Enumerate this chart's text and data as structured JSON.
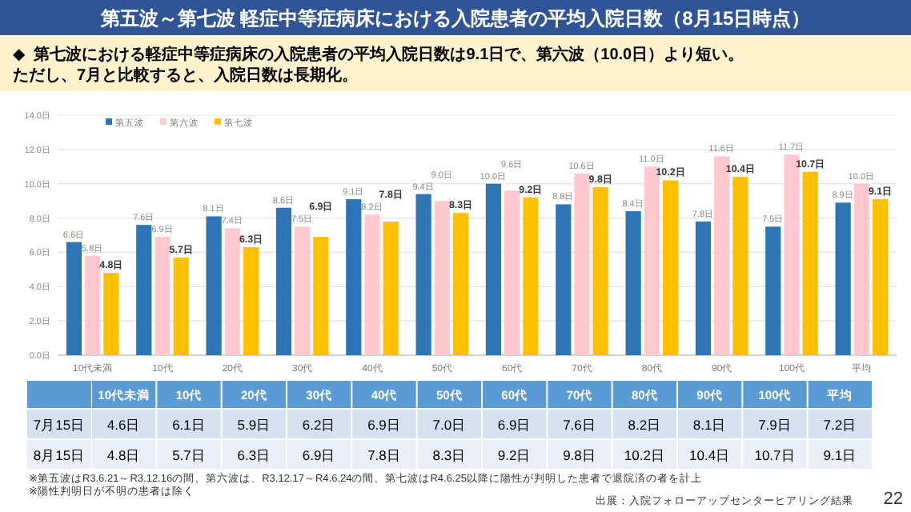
{
  "chart_data": [
    {
      "type": "bar",
      "title": "第五波～第七波  軽症中等症病床における入院患者の平均入院日数（8月15日時点）",
      "subtitle": "◆  第七波における軽症中等症病床の入院患者の平均入院日数は9.1日で、第六波（10.0日）より短い。ただし、7月と比較すると、入院日数は長期化。",
      "categories": [
        "10代未満",
        "10代",
        "20代",
        "30代",
        "40代",
        "50代",
        "60代",
        "70代",
        "80代",
        "90代",
        "100代",
        "平均"
      ],
      "series": [
        {
          "name": "第五波",
          "color": "#2e75b6",
          "values": [
            6.6,
            7.6,
            8.1,
            8.6,
            9.1,
            9.4,
            10.0,
            8.8,
            8.4,
            7.8,
            7.5,
            8.9
          ],
          "value_labels": [
            "6.6日",
            "7.6日",
            "8.1日",
            "8.6日",
            "9.1日",
            "9.4日",
            "10.0日",
            "8.8日",
            "8.4日",
            "7.8日",
            "7.5日",
            "8.9日"
          ]
        },
        {
          "name": "第六波",
          "color": "#ffc9cf",
          "values": [
            5.8,
            6.9,
            7.4,
            7.5,
            8.2,
            9.0,
            9.6,
            10.6,
            11.0,
            11.6,
            11.7,
            10.0
          ],
          "value_labels": [
            "5.8日",
            "6.9日",
            "7.4日",
            "7.5日",
            "8.2日",
            "9.0日",
            "9.6日",
            "10.6日",
            "11.0日",
            "11.6日",
            "11.7日",
            "10.0日"
          ]
        },
        {
          "name": "第七波",
          "color": "#ffc000",
          "values": [
            4.8,
            5.7,
            6.3,
            6.9,
            7.8,
            8.3,
            9.2,
            9.8,
            10.2,
            10.4,
            10.7,
            9.1
          ],
          "value_labels": [
            "4.8日",
            "5.7日",
            "6.3日",
            "6.9日",
            "7.8日",
            "8.3日",
            "9.2日",
            "9.8日",
            "10.2日",
            "10.4日",
            "10.7日",
            "9.1日"
          ]
        }
      ],
      "ylim": [
        0,
        14
      ],
      "yticks": [
        {
          "value": 0,
          "label": "0.0日"
        },
        {
          "value": 2,
          "label": "2.0日"
        },
        {
          "value": 4,
          "label": "4.0日"
        },
        {
          "value": 6,
          "label": "6.0日"
        },
        {
          "value": 8,
          "label": "8.0日"
        },
        {
          "value": 10,
          "label": "10.0日"
        },
        {
          "value": 12,
          "label": "12.0日"
        },
        {
          "value": 14,
          "label": "14.0日"
        }
      ],
      "grid": "y",
      "legend": "top left"
    },
    {
      "type": "heatmap",
      "categories": [
        "10代未満",
        "10代",
        "20代",
        "30代",
        "40代",
        "50代",
        "60代",
        "70代",
        "80代",
        "90代",
        "100代",
        "平均"
      ],
      "y_categories": [
        "7月15日",
        "8月15日"
      ],
      "cells": [
        [
          4.6,
          6.1,
          5.9,
          6.2,
          6.9,
          7.0,
          6.9,
          7.6,
          8.2,
          8.1,
          7.9,
          7.2
        ],
        [
          4.8,
          5.7,
          6.3,
          6.9,
          7.8,
          8.3,
          9.2,
          9.8,
          10.2,
          10.4,
          10.7,
          9.1
        ]
      ],
      "cell_labels": [
        [
          "4.6日",
          "6.1日",
          "5.9日",
          "6.2日",
          "6.9日",
          "7.0日",
          "6.9日",
          "7.6日",
          "8.2日",
          "8.1日",
          "7.9日",
          "7.2日"
        ],
        [
          "4.8日",
          "5.7日",
          "6.3日",
          "6.9日",
          "7.8日",
          "8.3日",
          "9.2日",
          "9.8日",
          "10.2日",
          "10.4日",
          "10.7日",
          "9.1日"
        ]
      ],
      "annotations": [
        "※第五波はR3.6.21～R3.12.16の間、第六波は、R3.12.17～R4.6.24の間、第七波はR4.6.25以降に陽性が判明した患者で退院済の者を計上",
        "※陽性判明日が不明の患者は除く",
        "出展：入院フォローアップセンターヒアリング結果",
        "22"
      ]
    }
  ]
}
